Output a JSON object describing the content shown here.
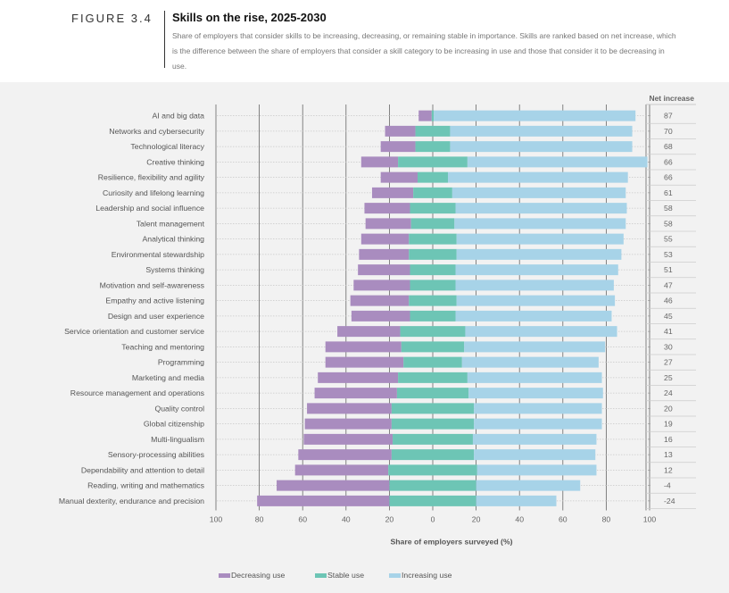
{
  "figure": {
    "label": "FIGURE 3.4",
    "title": "Skills on the rise, 2025-2030",
    "subtitle": "Share of employers that consider skills to be increasing, decreasing, or remaining stable in importance. Skills are ranked based on net increase, which is the difference between the share of employers that consider a skill category to be increasing in use and those that consider it to be decreasing in use."
  },
  "colors": {
    "decreasing": "#a98cbf",
    "stable": "#6dc5b5",
    "increasing": "#a7d3e8",
    "grid": "#666666",
    "background": "#f2f2f2"
  },
  "chart_data": {
    "type": "bar",
    "orientation": "horizontal-diverging",
    "xlabel": "Share of employers surveyed (%)",
    "xticks": [
      100,
      80,
      60,
      40,
      20,
      0,
      20,
      40,
      60,
      80,
      100
    ],
    "xlim": [
      -100,
      100
    ],
    "net_header": "Net increase",
    "grid": true,
    "legend_position": "bottom-left",
    "categories": [
      "AI and big data",
      "Networks and cybersecurity",
      "Technological literacy",
      "Creative thinking",
      "Resilience, flexibility and agility",
      "Curiosity and lifelong learning",
      "Leadership and social influence",
      "Talent management",
      "Analytical thinking",
      "Environmental stewardship",
      "Systems thinking",
      "Motivation and self-awareness",
      "Empathy and active listening",
      "Design and user experience",
      "Service orientation and customer service",
      "Teaching and mentoring",
      "Programming",
      "Marketing and media",
      "Resource management and operations",
      "Quality control",
      "Global citizenship",
      "Multi-lingualism",
      "Sensory-processing abilities",
      "Dependability and attention to detail",
      "Reading, writing and mathematics",
      "Manual dexterity, endurance and precision"
    ],
    "net_labels": [
      "87",
      "70",
      "68",
      "66",
      "66",
      "61",
      "58",
      "58",
      "55",
      "53",
      "51",
      "47",
      "46",
      "45",
      "41",
      "30",
      "27",
      "25",
      "24",
      "20",
      "19",
      "16",
      "13",
      "12",
      "-4",
      "-24"
    ],
    "series": [
      {
        "name": "Decreasing use",
        "key": "decreasing",
        "values": [
          6,
          14,
          16,
          17,
          17,
          19,
          21,
          21,
          22,
          23,
          24,
          26,
          27,
          27,
          29,
          35,
          36,
          37,
          38,
          39,
          40,
          41,
          43,
          43,
          52,
          61
        ]
      },
      {
        "name": "Stable use",
        "key": "stable",
        "values": [
          1,
          16,
          16,
          32,
          14,
          18,
          21,
          20,
          22,
          22,
          21,
          21,
          22,
          21,
          30,
          29,
          27,
          32,
          33,
          38,
          38,
          37,
          38,
          41,
          40,
          40
        ]
      },
      {
        "name": "Increasing use",
        "key": "increasing",
        "values": [
          93,
          84,
          84,
          83,
          83,
          80,
          79,
          79,
          77,
          76,
          75,
          73,
          73,
          72,
          70,
          65,
          63,
          62,
          62,
          59,
          59,
          57,
          56,
          55,
          48,
          37
        ]
      }
    ]
  }
}
